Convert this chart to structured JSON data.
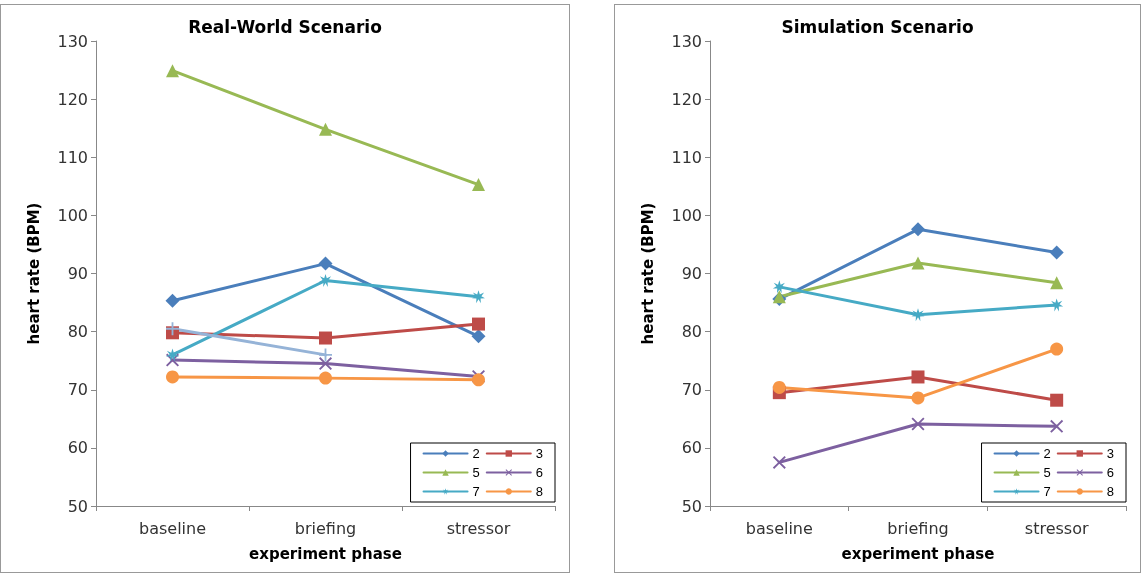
{
  "chart_data": [
    {
      "type": "line",
      "title": "Real-World Scenario",
      "xlabel": "experiment phase",
      "ylabel": "heart rate (BPM)",
      "categories": [
        "baseline",
        "briefing",
        "stressor"
      ],
      "ylim": [
        50,
        130
      ],
      "yticks": [
        50,
        60,
        70,
        80,
        90,
        100,
        110,
        120,
        130
      ],
      "grid": false,
      "legend": "bottom right",
      "line_style": "solid",
      "series": [
        {
          "name": "2",
          "color": "#4a7ebb",
          "marker": "diamond",
          "values": [
            85.3,
            91.7,
            79.2
          ]
        },
        {
          "name": "3",
          "color": "#be4b48",
          "marker": "square",
          "values": [
            79.8,
            78.9,
            81.3
          ]
        },
        {
          "name": "5",
          "color": "#98b954",
          "marker": "triangle",
          "values": [
            124.9,
            114.8,
            105.3
          ]
        },
        {
          "name": "6",
          "color": "#7d60a0",
          "marker": "cross",
          "values": [
            75.1,
            74.5,
            72.3
          ]
        },
        {
          "name": "7",
          "color": "#46aac5",
          "marker": "star",
          "values": [
            76.0,
            88.8,
            86.0
          ]
        },
        {
          "name": "8",
          "color": "#f79646",
          "marker": "circle",
          "values": [
            72.2,
            72.0,
            71.7
          ]
        },
        {
          "color": "#95b3d7",
          "marker": "plus",
          "values": [
            80.5,
            76.0,
            null
          ]
        }
      ]
    },
    {
      "type": "line",
      "title": "Simulation Scenario",
      "xlabel": "experiment phase",
      "ylabel": "heart rate (BPM)",
      "categories": [
        "baseline",
        "briefing",
        "stressor"
      ],
      "ylim": [
        50,
        130
      ],
      "yticks": [
        50,
        60,
        70,
        80,
        90,
        100,
        110,
        120,
        130
      ],
      "grid": false,
      "legend": "bottom right",
      "line_style": "solid",
      "series": [
        {
          "name": "2",
          "color": "#4a7ebb",
          "marker": "diamond",
          "values": [
            85.6,
            97.6,
            93.6
          ]
        },
        {
          "name": "3",
          "color": "#be4b48",
          "marker": "square",
          "values": [
            69.5,
            72.2,
            68.2
          ]
        },
        {
          "name": "5",
          "color": "#98b954",
          "marker": "triangle",
          "values": [
            86.0,
            91.8,
            88.4
          ]
        },
        {
          "name": "6",
          "color": "#7d60a0",
          "marker": "cross",
          "values": [
            57.5,
            64.1,
            63.7
          ]
        },
        {
          "name": "7",
          "color": "#46aac5",
          "marker": "star",
          "values": [
            87.7,
            82.9,
            84.6
          ]
        },
        {
          "name": "8",
          "color": "#f79646",
          "marker": "circle",
          "values": [
            70.4,
            68.6,
            77.0
          ]
        }
      ]
    }
  ]
}
